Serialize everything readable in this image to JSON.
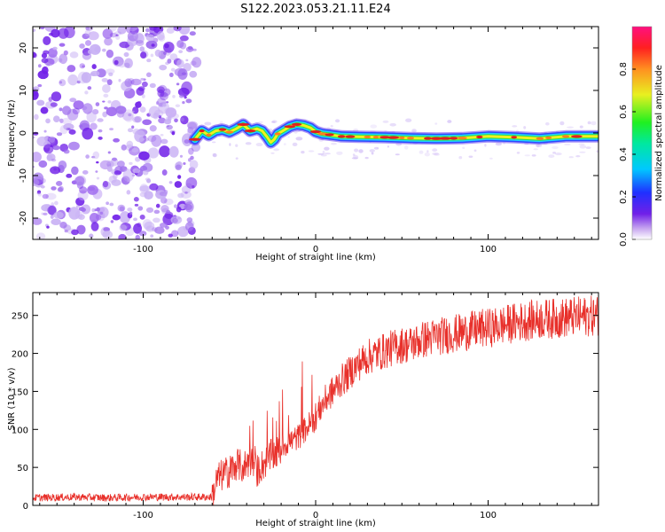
{
  "title": "S122.2023.053.21.11.E24",
  "colors": {
    "snr_line": "#e8302a",
    "axis": "#000000",
    "ridge_core": "#e02020",
    "ridge_mid": "#f0f020",
    "ridge_outer": "#20d0ff",
    "noise": "#7020e8",
    "noise_light": "#c8b0f4"
  },
  "chart_data": [
    {
      "type": "heatmap",
      "xlabel": "Height of straight line (km)",
      "ylabel": "Frequency (Hz)",
      "xlim": [
        -164,
        164
      ],
      "ylim": [
        -25,
        25
      ],
      "xticks": [
        -100,
        0,
        100
      ],
      "yticks": [
        -20,
        -10,
        0,
        10,
        20
      ],
      "noise_region_x": [
        -164,
        -69
      ],
      "ridge": {
        "x": [
          -70,
          -66,
          -62,
          -58,
          -54,
          -50,
          -46,
          -42,
          -38,
          -34,
          -31,
          -28,
          -26,
          -24,
          -22,
          -19,
          -15,
          -11,
          -7,
          -3,
          0,
          4,
          8,
          15,
          25,
          40,
          55,
          70,
          85,
          100,
          115,
          130,
          145,
          164
        ],
        "y": [
          -1.5,
          0.5,
          -0.5,
          0.5,
          0.8,
          0.2,
          1.0,
          2.0,
          0.5,
          1.0,
          0.5,
          -1.0,
          -2.2,
          -1.5,
          -0.2,
          0.5,
          1.5,
          2.0,
          1.8,
          1.2,
          0.3,
          -0.2,
          -0.4,
          -0.8,
          -0.9,
          -1.0,
          -1.2,
          -1.3,
          -1.2,
          -0.8,
          -1.0,
          -1.3,
          -0.8,
          -0.8
        ]
      },
      "colorbar": {
        "label": "Normalized spectral amplitude",
        "ticks": [
          0.0,
          0.2,
          0.4,
          0.6,
          0.8
        ],
        "tick_labels": [
          "0.0",
          "0.2",
          "0.4",
          "0.6",
          "0.8"
        ],
        "range": [
          0,
          1
        ]
      }
    },
    {
      "type": "line",
      "xlabel": "Height of straight line (km)",
      "ylabel": "SNR (10 * v/v)",
      "xlim": [
        -164,
        164
      ],
      "ylim": [
        0,
        280
      ],
      "xticks": [
        -100,
        0,
        100
      ],
      "yticks": [
        0,
        50,
        100,
        150,
        200,
        250
      ],
      "series": [
        {
          "x": [
            -164,
            -140,
            -120,
            -100,
            -80,
            -60,
            -57,
            -54,
            -50,
            -46,
            -42,
            -38,
            -34,
            -30,
            -26,
            -22,
            -18,
            -14,
            -10,
            -6,
            -2,
            2,
            6,
            10,
            14,
            18,
            22,
            26,
            30,
            36,
            42,
            48,
            55,
            62,
            70,
            78,
            86,
            94,
            102,
            110,
            120,
            130,
            140,
            150,
            158,
            164
          ],
          "values": [
            10,
            11,
            10,
            11,
            11,
            11,
            35,
            40,
            45,
            55,
            50,
            60,
            45,
            55,
            65,
            70,
            80,
            85,
            90,
            100,
            110,
            125,
            140,
            150,
            162,
            170,
            180,
            188,
            195,
            200,
            205,
            210,
            212,
            218,
            222,
            225,
            228,
            232,
            234,
            238,
            242,
            245,
            246,
            248,
            249,
            250
          ]
        }
      ]
    }
  ]
}
